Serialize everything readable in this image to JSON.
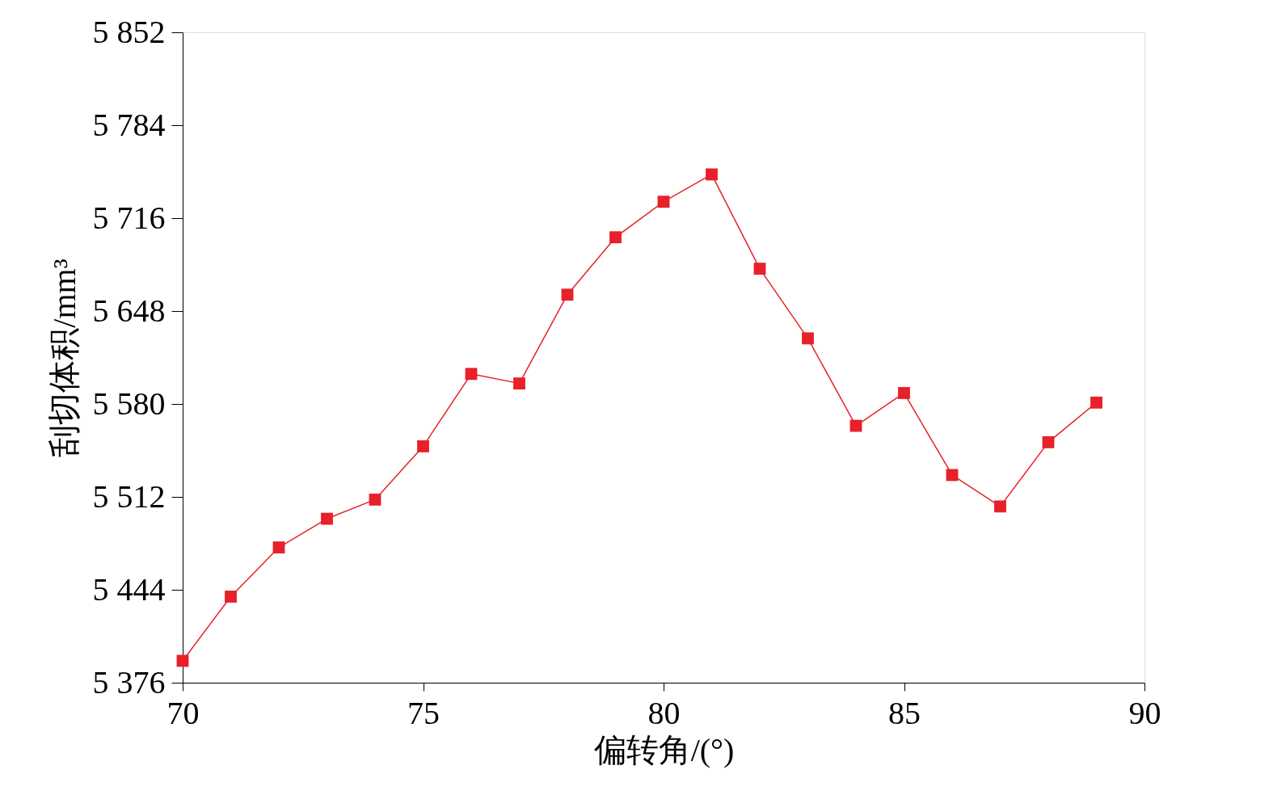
{
  "chart_data": {
    "type": "line",
    "xlabel": "偏转角/(°)",
    "ylabel": "刮切体积/mm³",
    "x": [
      70,
      71,
      72,
      73,
      74,
      75,
      76,
      77,
      78,
      79,
      80,
      81,
      82,
      83,
      84,
      85,
      86,
      87,
      88,
      89
    ],
    "series": [
      {
        "color": "#e8202a",
        "values": [
          5392,
          5439,
          5475,
          5496,
          5510,
          5549,
          5602,
          5595,
          5660,
          5702,
          5728,
          5748,
          5679,
          5628,
          5564,
          5588,
          5528,
          5505,
          5552,
          5581
        ]
      }
    ],
    "xlim": [
      70,
      90
    ],
    "xticks": [
      70,
      75,
      80,
      85,
      90
    ],
    "ylim": [
      5376,
      5852
    ],
    "yticks": [
      {
        "value": 5376,
        "label": "5 376"
      },
      {
        "value": 5444,
        "label": "5 444"
      },
      {
        "value": 5512,
        "label": "5 512"
      },
      {
        "value": 5580,
        "label": "5 580"
      },
      {
        "value": 5648,
        "label": "5 648"
      },
      {
        "value": 5716,
        "label": "5 716"
      },
      {
        "value": 5784,
        "label": "5 784"
      },
      {
        "value": 5852,
        "label": "5 852"
      }
    ],
    "grid": false,
    "marker": "square",
    "line_style": "solid"
  }
}
